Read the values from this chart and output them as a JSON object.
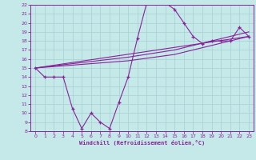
{
  "xlabel": "Windchill (Refroidissement éolien,°C)",
  "xlim": [
    -0.5,
    23.5
  ],
  "ylim": [
    8,
    22
  ],
  "xticks": [
    0,
    1,
    2,
    3,
    4,
    5,
    6,
    7,
    8,
    9,
    10,
    11,
    12,
    13,
    14,
    15,
    16,
    17,
    18,
    19,
    20,
    21,
    22,
    23
  ],
  "yticks": [
    8,
    9,
    10,
    11,
    12,
    13,
    14,
    15,
    16,
    17,
    18,
    19,
    20,
    21,
    22
  ],
  "bg_color": "#c5e8e8",
  "line_color": "#882299",
  "grid_color": "#a8d0d0",
  "main_line": {
    "x": [
      0,
      1,
      2,
      3,
      4,
      5,
      6,
      7,
      8,
      9,
      10,
      11,
      12,
      13,
      14,
      15,
      16,
      17,
      18,
      19,
      20,
      21,
      22,
      23
    ],
    "y": [
      15,
      14,
      14,
      14,
      10.5,
      8.3,
      10,
      9,
      8.3,
      11.2,
      14,
      18.3,
      22.2,
      22.2,
      22.2,
      21.5,
      20,
      18.5,
      17.7,
      18.0,
      18.0,
      18.0,
      19.5,
      18.5
    ]
  },
  "smooth_lines": [
    {
      "x": [
        0,
        23
      ],
      "y": [
        15.0,
        18.5
      ]
    },
    {
      "x": [
        0,
        10,
        15,
        23
      ],
      "y": [
        15.0,
        15.8,
        16.5,
        18.5
      ]
    },
    {
      "x": [
        0,
        10,
        15,
        23
      ],
      "y": [
        15.0,
        16.2,
        17.0,
        19.0
      ]
    }
  ]
}
